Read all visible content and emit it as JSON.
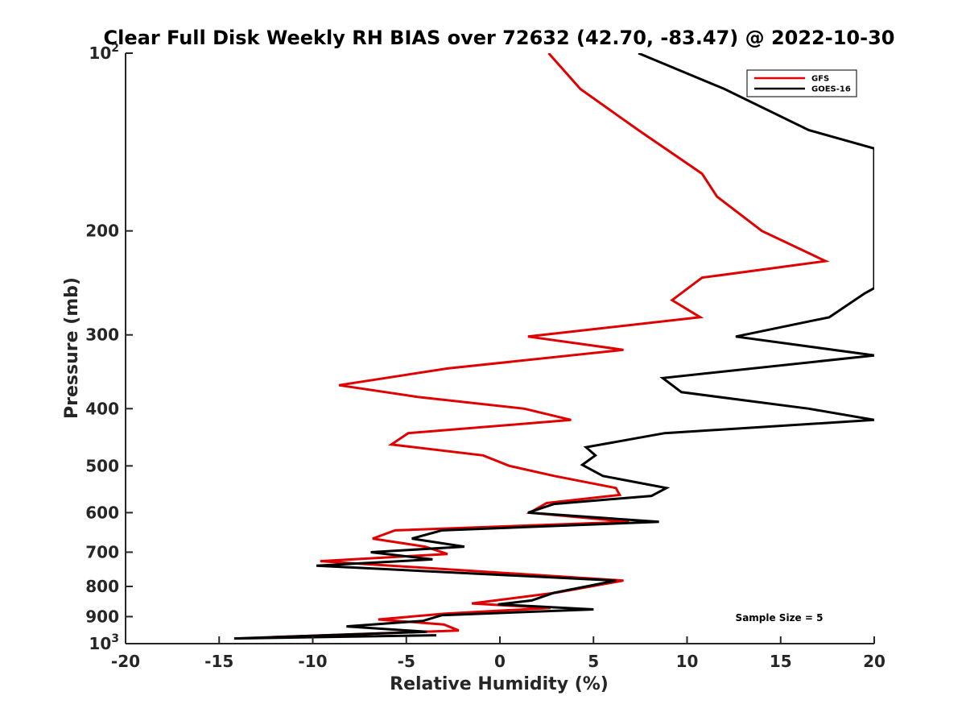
{
  "chart_data": {
    "type": "line",
    "title": "Clear Full Disk Weekly RH BIAS over 72632 (42.70, -83.47) @ 2022-10-30",
    "xlabel": "Relative Humidity (%)",
    "ylabel": "Pressure (mb)",
    "xlim": [
      -20,
      20
    ],
    "ylim": [
      100,
      1000
    ],
    "yscale": "log",
    "y_reversed": true,
    "x_ticks": [
      -20,
      -15,
      -10,
      -5,
      0,
      5,
      10,
      15,
      20
    ],
    "x_tick_labels": [
      "-20",
      "-15",
      "-10",
      "-5",
      "0",
      "5",
      "10",
      "15",
      "20"
    ],
    "y_ticks": [
      {
        "value": 100,
        "base": "10",
        "exp": "2"
      },
      {
        "value": 200,
        "label": "200"
      },
      {
        "value": 300,
        "label": "300"
      },
      {
        "value": 400,
        "label": "400"
      },
      {
        "value": 500,
        "label": "500"
      },
      {
        "value": 600,
        "label": "600"
      },
      {
        "value": 700,
        "label": "700"
      },
      {
        "value": 800,
        "label": "800"
      },
      {
        "value": 900,
        "label": "900"
      },
      {
        "value": 1000,
        "base": "10",
        "exp": "3"
      }
    ],
    "grid": false,
    "legend_position": "top-right",
    "annotation": "Sample Size = 5",
    "series": [
      {
        "name": "GFS",
        "color": "#e00000",
        "points": [
          [
            2.6,
            100
          ],
          [
            4.3,
            115
          ],
          [
            7.4,
            135
          ],
          [
            10.8,
            160
          ],
          [
            11.6,
            175
          ],
          [
            14,
            200
          ],
          [
            17.4,
            225
          ],
          [
            10.8,
            240
          ],
          [
            9.2,
            262
          ],
          [
            10.7,
            280
          ],
          [
            1.5,
            302
          ],
          [
            6.6,
            318
          ],
          [
            -2.8,
            342
          ],
          [
            -8.6,
            365
          ],
          [
            -4.4,
            382
          ],
          [
            1.3,
            400
          ],
          [
            3.8,
            418
          ],
          [
            -4.9,
            440
          ],
          [
            -5.8,
            460
          ],
          [
            -0.9,
            480
          ],
          [
            0.5,
            500
          ],
          [
            2.9,
            520
          ],
          [
            6.2,
            545
          ],
          [
            6.4,
            560
          ],
          [
            2.5,
            578
          ],
          [
            1.6,
            600
          ],
          [
            6.9,
            622
          ],
          [
            -5.6,
            643
          ],
          [
            -6.8,
            664
          ],
          [
            -4,
            685
          ],
          [
            -2.8,
            705
          ],
          [
            -9.6,
            725
          ],
          [
            6.6,
            782
          ],
          [
            3,
            820
          ],
          [
            -1.5,
            855
          ],
          [
            2.7,
            870
          ],
          [
            -3,
            890
          ],
          [
            -6.5,
            910
          ],
          [
            -3,
            928
          ],
          [
            -2.2,
            950
          ],
          [
            -12.2,
            975
          ]
        ]
      },
      {
        "name": "GOES-16",
        "color": "#000000",
        "points": [
          [
            7.4,
            100
          ],
          [
            12,
            115
          ],
          [
            16.5,
            135
          ],
          [
            20,
            145
          ],
          [
            20,
            250
          ],
          [
            19.5,
            255
          ],
          [
            17.6,
            280
          ],
          [
            12.6,
            302
          ],
          [
            20,
            325
          ],
          [
            8.7,
            355
          ],
          [
            9.7,
            375
          ],
          [
            16.5,
            400
          ],
          [
            20,
            418
          ],
          [
            8.8,
            440
          ],
          [
            4.6,
            465
          ],
          [
            5.1,
            480
          ],
          [
            4.4,
            498
          ],
          [
            5.5,
            520
          ],
          [
            8.9,
            545
          ],
          [
            8.1,
            562
          ],
          [
            2.9,
            580
          ],
          [
            1.5,
            600
          ],
          [
            8.5,
            622
          ],
          [
            -3.1,
            643
          ],
          [
            -4.7,
            664
          ],
          [
            -1.9,
            685
          ],
          [
            -6.9,
            700
          ],
          [
            -3.6,
            720
          ],
          [
            -9.8,
            738
          ],
          [
            6.2,
            782
          ],
          [
            2.9,
            820
          ],
          [
            1.7,
            845
          ],
          [
            -0.1,
            858
          ],
          [
            5,
            875
          ],
          [
            -3.1,
            895
          ],
          [
            -4.1,
            915
          ],
          [
            -8.2,
            935
          ],
          [
            -3.9,
            955
          ],
          [
            -14.2,
            980
          ],
          [
            -3.4,
            968
          ]
        ]
      }
    ]
  }
}
